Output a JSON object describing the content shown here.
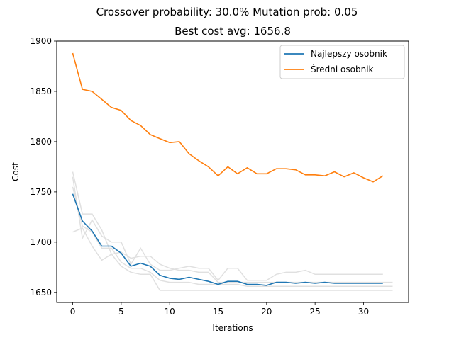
{
  "chart_data": {
    "type": "line",
    "suptitle": "Crossover probability: 30.0% Mutation prob: 0.05",
    "title": "Best cost avg: 1656.8",
    "xlabel": "Iterations",
    "ylabel": "Cost",
    "xlim": [
      -1.65,
      34.65
    ],
    "ylim": [
      1640,
      1900
    ],
    "xticks": [
      0,
      5,
      10,
      15,
      20,
      25,
      30
    ],
    "yticks": [
      1650,
      1700,
      1750,
      1800,
      1850,
      1900
    ],
    "grid": false,
    "legend_position": "upper-right",
    "x": [
      0,
      1,
      2,
      3,
      4,
      5,
      6,
      7,
      8,
      9,
      10,
      11,
      12,
      13,
      14,
      15,
      16,
      17,
      18,
      19,
      20,
      21,
      22,
      23,
      24,
      25,
      26,
      27,
      28,
      29,
      30,
      31,
      32
    ],
    "series": [
      {
        "name": "Najlepszy osobnik",
        "color": "#1f77b4",
        "values": [
          1748,
          1721,
          1711,
          1696,
          1696,
          1689,
          1676,
          1679,
          1676,
          1667,
          1664,
          1663,
          1665,
          1663,
          1661,
          1658,
          1661,
          1661,
          1658,
          1658,
          1657,
          1660,
          1660,
          1659,
          1660,
          1659,
          1660,
          1659,
          1659,
          1659,
          1659,
          1659,
          1659
        ]
      },
      {
        "name": "Średni osobnik",
        "color": "#ff7f0e",
        "values": [
          1888,
          1852,
          1850,
          1842,
          1834,
          1831,
          1821,
          1816,
          1807,
          1803,
          1799,
          1800,
          1788,
          1781,
          1775,
          1766,
          1775,
          1768,
          1774,
          1768,
          1768,
          1773,
          1773,
          1772,
          1767,
          1767,
          1766,
          1770,
          1765,
          1769,
          1764,
          1760,
          1766
        ]
      }
    ],
    "background_runs": {
      "color": "#e0e0e0",
      "runs": [
        [
          1770,
          1728,
          1728,
          1712,
          1688,
          1690,
          1684,
          1686,
          1686,
          1678,
          1674,
          1672,
          1672,
          1670,
          1670,
          1660,
          1660,
          1660,
          1660,
          1660,
          1660,
          1660,
          1660,
          1660,
          1660,
          1660,
          1660,
          1660,
          1660,
          1660,
          1660,
          1660,
          1660,
          1660
        ],
        [
          1765,
          1704,
          1722,
          1706,
          1700,
          1700,
          1678,
          1694,
          1678,
          1672,
          1672,
          1674,
          1676,
          1674,
          1674,
          1662,
          1674,
          1674,
          1662,
          1662,
          1662,
          1668,
          1670,
          1670,
          1672,
          1668,
          1668,
          1668,
          1668,
          1668,
          1668,
          1668,
          1668
        ],
        [
          1710,
          1714,
          1696,
          1682,
          1688,
          1676,
          1670,
          1668,
          1668,
          1652,
          1652,
          1652,
          1652,
          1652,
          1652,
          1652,
          1652,
          1652,
          1652,
          1652,
          1652,
          1652,
          1652,
          1652,
          1652,
          1652,
          1652,
          1652,
          1652,
          1652,
          1652,
          1652,
          1652,
          1652
        ],
        [
          1755,
          1716,
          1710,
          1694,
          1694,
          1680,
          1674,
          1674,
          1670,
          1662,
          1660,
          1660,
          1660,
          1658,
          1658,
          1658,
          1658,
          1658,
          1656,
          1656,
          1656,
          1656,
          1656,
          1656,
          1656,
          1656,
          1656,
          1656,
          1656,
          1656,
          1656,
          1656,
          1656,
          1656
        ]
      ]
    }
  }
}
